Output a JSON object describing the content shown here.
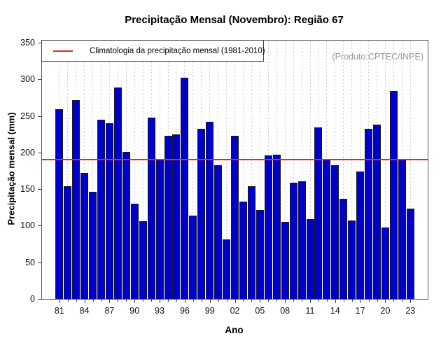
{
  "title": "Precipitação Mensal (Novembro): Região 67",
  "legend": {
    "label": "Climatologia da precipitação mensal (1981-2010)"
  },
  "watermark": "(Produto:CPTEC/INPE)",
  "colors": {
    "bar_fill": "#0000CD",
    "bar_border": "#1b1b1b",
    "climatology_line": "#f52222",
    "gridline": "#cdcdcd",
    "watermark_text": "#9a9a9a"
  },
  "chart_data": {
    "type": "bar",
    "title": "Precipitação Mensal (Novembro): Região 67",
    "xlabel": "Ano",
    "ylabel": "Precipitação mensal (mm)",
    "ylim": [
      0,
      350
    ],
    "yticks": [
      0,
      50,
      100,
      150,
      200,
      250,
      300,
      350
    ],
    "grid": "vertical-dashed",
    "legend_position": "top-left",
    "x_label_every": 3,
    "xticks_labeled": [
      "81",
      "84",
      "87",
      "90",
      "93",
      "96",
      "99",
      "02",
      "05",
      "08",
      "11",
      "14",
      "17",
      "20",
      "23"
    ],
    "categories": [
      "81",
      "82",
      "83",
      "84",
      "85",
      "86",
      "87",
      "88",
      "89",
      "90",
      "91",
      "92",
      "93",
      "94",
      "95",
      "96",
      "97",
      "98",
      "99",
      "00",
      "01",
      "02",
      "03",
      "04",
      "05",
      "06",
      "07",
      "08",
      "09",
      "10",
      "11",
      "12",
      "13",
      "14",
      "15",
      "16",
      "17",
      "18",
      "19",
      "20",
      "21",
      "22",
      "23"
    ],
    "values": [
      259,
      154,
      272,
      172,
      146,
      245,
      240,
      289,
      201,
      130,
      106,
      248,
      190,
      223,
      225,
      302,
      114,
      232,
      242,
      183,
      81,
      223,
      133,
      154,
      121,
      196,
      197,
      105,
      159,
      161,
      109,
      234,
      190,
      183,
      137,
      107,
      174,
      232,
      238,
      98,
      284,
      190,
      123
    ],
    "climatology_value": 190
  }
}
